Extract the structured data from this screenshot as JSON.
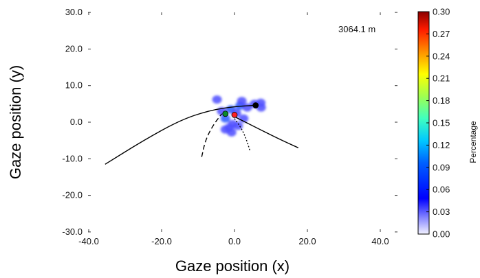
{
  "chart_data": {
    "type": "heatmap",
    "xlabel": "Gaze position (x)",
    "ylabel": "Gaze position (y)",
    "xlim": [
      -45,
      45
    ],
    "ylim": [
      -30,
      30
    ],
    "x_ticks": [
      "-40.0",
      "-20.0",
      "0.0",
      "20.0",
      "40.0"
    ],
    "x_tick_values": [
      -40,
      -20,
      0,
      20,
      40
    ],
    "y_ticks": [
      "30.0",
      "20.0",
      "10.0",
      "0.0",
      "-10.0",
      "-20.0",
      "-30.0"
    ],
    "y_tick_values": [
      30,
      20,
      10,
      0,
      -10,
      -20,
      -30
    ],
    "annotation": "3064.1 m",
    "colorbar": {
      "label": "Percentage",
      "min": 0.0,
      "max": 0.3,
      "ticks": [
        "0.30",
        "0.27",
        "0.24",
        "0.21",
        "0.18",
        "0.15",
        "0.12",
        "0.09",
        "0.06",
        "0.03",
        "0.00"
      ],
      "colors": [
        "#8b0000",
        "#ff0000",
        "#ff8c00",
        "#ffff00",
        "#7fff7f",
        "#00ffff",
        "#0080ff",
        "#0000ff",
        "#00008b",
        "#e8e8ff"
      ]
    },
    "gaze_blobs": [
      {
        "x": -4.8,
        "y": 6.2,
        "level": 0.04
      },
      {
        "x": -3.5,
        "y": 3.0,
        "level": 0.05
      },
      {
        "x": -2.5,
        "y": 1.0,
        "level": 0.06
      },
      {
        "x": -1.0,
        "y": 3.5,
        "level": 0.06
      },
      {
        "x": 0.5,
        "y": 2.5,
        "level": 0.05
      },
      {
        "x": 1.5,
        "y": 4.5,
        "level": 0.06
      },
      {
        "x": 2.5,
        "y": 1.0,
        "level": 0.05
      },
      {
        "x": 3.5,
        "y": 4.0,
        "level": 0.05
      },
      {
        "x": -0.5,
        "y": -0.5,
        "level": 0.05
      },
      {
        "x": -1.5,
        "y": -1.5,
        "level": 0.04
      },
      {
        "x": 1.0,
        "y": -1.0,
        "level": 0.04
      },
      {
        "x": -2.5,
        "y": -2.0,
        "level": 0.04
      },
      {
        "x": -0.8,
        "y": -2.8,
        "level": 0.04
      },
      {
        "x": 5.5,
        "y": 5.0,
        "level": 0.05
      },
      {
        "x": 7.2,
        "y": 5.3,
        "level": 0.04
      },
      {
        "x": 7.3,
        "y": 4.0,
        "level": 0.04
      },
      {
        "x": 2.0,
        "y": 5.8,
        "level": 0.04
      }
    ],
    "paths": [
      {
        "style": "solid",
        "points": [
          [
            -35.5,
            -11.5
          ],
          [
            -25,
            -5
          ],
          [
            -15,
            0.5
          ],
          [
            -7,
            3.2
          ],
          [
            0,
            4.3
          ],
          [
            5.8,
            4.6
          ]
        ]
      },
      {
        "style": "solid",
        "points": [
          [
            0,
            1.5
          ],
          [
            5,
            -1
          ],
          [
            12,
            -4.5
          ],
          [
            17.5,
            -7
          ]
        ]
      },
      {
        "style": "dashed",
        "points": [
          [
            -9,
            -9.5
          ],
          [
            -8,
            -5
          ],
          [
            -6,
            -1
          ],
          [
            -3.5,
            2.3
          ]
        ]
      },
      {
        "style": "dotted",
        "points": [
          [
            0,
            1.0
          ],
          [
            1.8,
            -1.5
          ],
          [
            3.2,
            -4.5
          ],
          [
            4.3,
            -8
          ]
        ]
      }
    ],
    "markers": [
      {
        "x": 5.8,
        "y": 4.6,
        "color": "#000000"
      },
      {
        "x": -2.5,
        "y": 2.3,
        "color": "#0a8a2a"
      },
      {
        "x": 0.0,
        "y": 2.0,
        "color": "#ff2020"
      }
    ]
  }
}
